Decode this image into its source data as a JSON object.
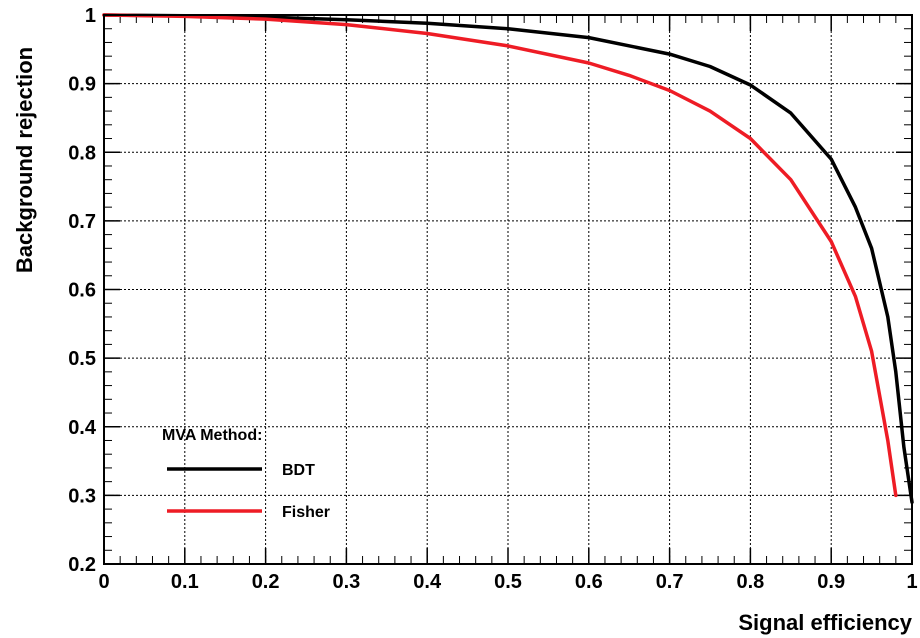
{
  "chart_data": {
    "type": "line",
    "title": "",
    "xlabel": "Signal efficiency",
    "ylabel": "Background rejection",
    "xlim": [
      0,
      1
    ],
    "ylim": [
      0.2,
      1
    ],
    "grid": true,
    "legend_position": "bottom-left",
    "legend_header": "MVA Method:",
    "x_ticks": [
      "0",
      "0.1",
      "0.2",
      "0.3",
      "0.4",
      "0.5",
      "0.6",
      "0.7",
      "0.8",
      "0.9",
      "1"
    ],
    "y_ticks": [
      "0.2",
      "0.3",
      "0.4",
      "0.5",
      "0.6",
      "0.7",
      "0.8",
      "0.9",
      "1"
    ],
    "series": [
      {
        "name": "BDT",
        "color": "#000000",
        "x": [
          0,
          0.1,
          0.2,
          0.3,
          0.4,
          0.5,
          0.6,
          0.7,
          0.75,
          0.8,
          0.85,
          0.9,
          0.93,
          0.95,
          0.97,
          0.98,
          0.99,
          1.0
        ],
        "y": [
          1.0,
          0.999,
          0.997,
          0.993,
          0.988,
          0.98,
          0.967,
          0.943,
          0.925,
          0.898,
          0.857,
          0.79,
          0.72,
          0.66,
          0.56,
          0.48,
          0.37,
          0.29
        ]
      },
      {
        "name": "Fisher",
        "color": "#ee1c25",
        "x": [
          0,
          0.1,
          0.2,
          0.3,
          0.4,
          0.5,
          0.6,
          0.65,
          0.7,
          0.75,
          0.8,
          0.85,
          0.9,
          0.93,
          0.95,
          0.97,
          0.98
        ],
        "y": [
          1.0,
          0.998,
          0.994,
          0.986,
          0.973,
          0.955,
          0.93,
          0.912,
          0.89,
          0.86,
          0.82,
          0.76,
          0.67,
          0.59,
          0.51,
          0.38,
          0.3
        ]
      }
    ]
  }
}
